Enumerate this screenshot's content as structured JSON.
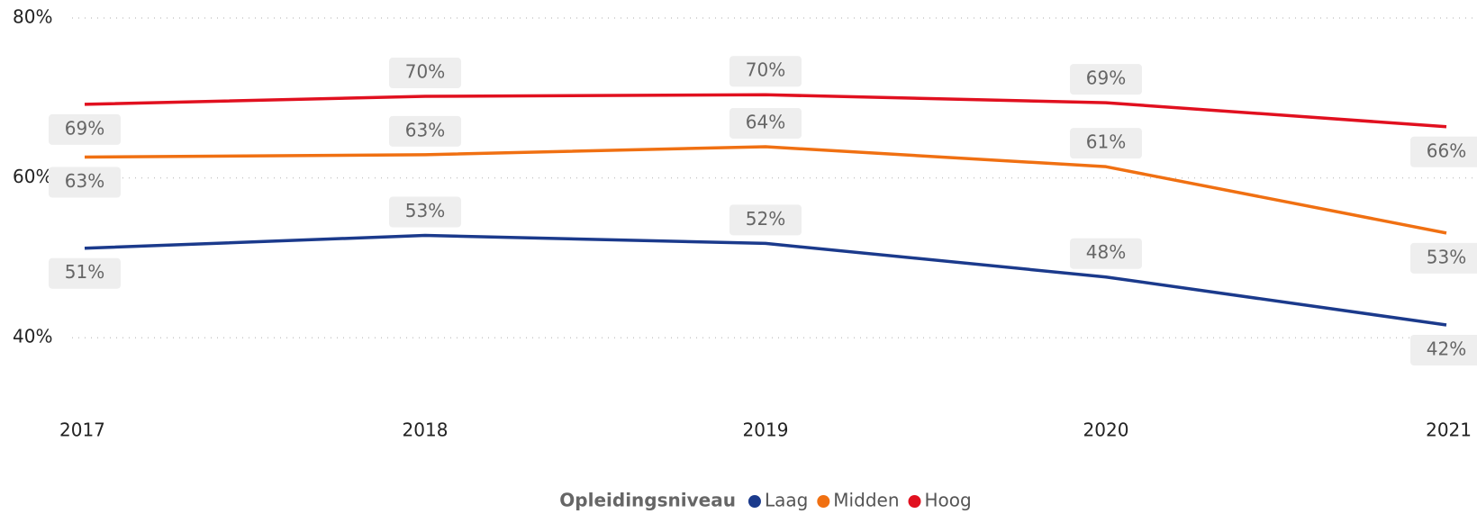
{
  "chart_data": {
    "type": "line",
    "categories": [
      "2017",
      "2018",
      "2019",
      "2020",
      "2021"
    ],
    "series": [
      {
        "name": "Laag",
        "color": "#1b3a8c",
        "values": [
          51.2,
          52.8,
          51.8,
          47.6,
          41.6
        ],
        "value_labels": [
          "51%",
          "53%",
          "52%",
          "48%",
          "42%"
        ]
      },
      {
        "name": "Midden",
        "color": "#f07012",
        "values": [
          62.6,
          62.9,
          63.9,
          61.4,
          53.1
        ],
        "value_labels": [
          "63%",
          "63%",
          "64%",
          "61%",
          "53%"
        ]
      },
      {
        "name": "Hoog",
        "color": "#e1101f",
        "values": [
          69.2,
          70.2,
          70.4,
          69.4,
          66.4
        ],
        "value_labels": [
          "69%",
          "70%",
          "70%",
          "69%",
          "66%"
        ]
      }
    ],
    "ylim": [
      30,
      80
    ],
    "yticks": [
      {
        "value": 40,
        "label": "40%"
      },
      {
        "value": 60,
        "label": "60%"
      },
      {
        "value": 80,
        "label": "80%"
      }
    ],
    "grid": true,
    "legend_title": "Opleidingsniveau",
    "legend": "bottom"
  }
}
